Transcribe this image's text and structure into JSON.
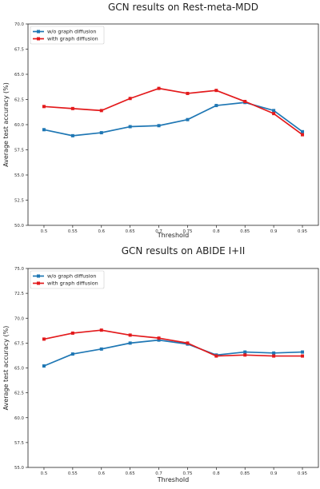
{
  "figure": {
    "colors": {
      "series_blue": "#1f77b4",
      "series_red": "#e31a1c"
    }
  },
  "chart_data": [
    {
      "type": "line",
      "title": "GCN results on Rest-meta-MDD",
      "xlabel": "Threshold",
      "ylabel": "Average test accuracy (%)",
      "x": [
        0.5,
        0.55,
        0.6,
        0.65,
        0.7,
        0.75,
        0.8,
        0.85,
        0.9,
        0.95
      ],
      "x_tick_labels": [
        "0.5",
        "0.55",
        "0.6",
        "0.65",
        "0.7",
        "0.75",
        "0.8",
        "0.85",
        "0.9",
        "0.95"
      ],
      "ylim": [
        50.0,
        70.0
      ],
      "y_ticks": [
        50.0,
        52.5,
        55.0,
        57.5,
        60.0,
        62.5,
        65.0,
        67.5,
        70.0
      ],
      "y_tick_labels": [
        "50.0",
        "52.5",
        "55.0",
        "57.5",
        "60.0",
        "62.5",
        "65.0",
        "67.5",
        "70.0"
      ],
      "legend_position": "top-left",
      "grid": false,
      "series": [
        {
          "name": "w/o graph diffusion",
          "color": "#1f77b4",
          "values": [
            59.5,
            58.9,
            59.2,
            59.8,
            59.9,
            60.5,
            61.9,
            62.2,
            61.4,
            59.3
          ]
        },
        {
          "name": "with graph diffusion",
          "color": "#e31a1c",
          "values": [
            61.8,
            61.6,
            61.4,
            62.6,
            63.6,
            63.1,
            63.4,
            62.3,
            61.1,
            59.0
          ]
        }
      ]
    },
    {
      "type": "line",
      "title": "GCN results on ABIDE I+II",
      "xlabel": "Threshold",
      "ylabel": "Average test accuracy (%)",
      "x": [
        0.5,
        0.55,
        0.6,
        0.65,
        0.7,
        0.75,
        0.8,
        0.85,
        0.9,
        0.95
      ],
      "x_tick_labels": [
        "0.5",
        "0.55",
        "0.6",
        "0.65",
        "0.7",
        "0.75",
        "0.8",
        "0.85",
        "0.9",
        "0.95"
      ],
      "ylim": [
        55.0,
        75.0
      ],
      "y_ticks": [
        55.0,
        57.5,
        60.0,
        62.5,
        65.0,
        67.5,
        70.0,
        72.5,
        75.0
      ],
      "y_tick_labels": [
        "55.0",
        "57.5",
        "60.0",
        "62.5",
        "65.0",
        "67.5",
        "70.0",
        "72.5",
        "75.0"
      ],
      "legend_position": "top-left",
      "grid": false,
      "series": [
        {
          "name": "w/o graph diffusion",
          "color": "#1f77b4",
          "values": [
            65.2,
            66.4,
            66.9,
            67.5,
            67.8,
            67.4,
            66.3,
            66.6,
            66.5,
            66.6
          ]
        },
        {
          "name": "with graph diffusion",
          "color": "#e31a1c",
          "values": [
            67.9,
            68.5,
            68.8,
            68.3,
            68.0,
            67.5,
            66.2,
            66.3,
            66.2,
            66.2
          ]
        }
      ]
    }
  ]
}
